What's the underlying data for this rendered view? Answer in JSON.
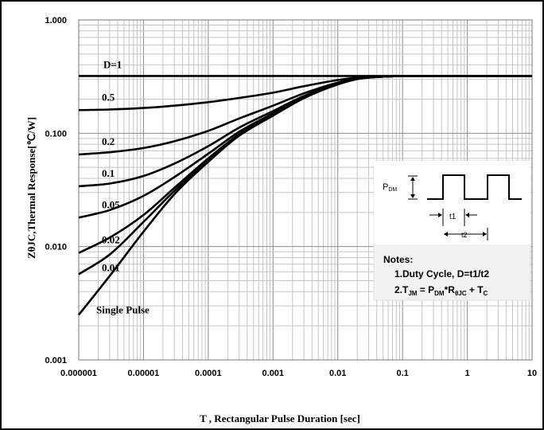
{
  "chart_data": {
    "type": "line",
    "title": "",
    "xlabel": "T , Rectangular Pulse Duration [sec]",
    "ylabel": "ZθJC,Thermal Response[℃/W]",
    "xscale": "log",
    "yscale": "log",
    "xlim": [
      1e-06,
      10
    ],
    "ylim": [
      0.001,
      1
    ],
    "grid": true,
    "x_ticks": [
      "0.000001",
      "0.00001",
      "0.0001",
      "0.001",
      "0.01",
      "0.1",
      "1",
      "10"
    ],
    "y_ticks": [
      "0.001",
      "0.010",
      "0.100",
      "1.000"
    ],
    "x": [
      1e-06,
      3e-06,
      1e-05,
      3e-05,
      0.0001,
      0.0003,
      0.001,
      0.003,
      0.01,
      0.02,
      0.05,
      0.1,
      1,
      10
    ],
    "series": [
      {
        "name": "D=1",
        "values": [
          0.32,
          0.32,
          0.32,
          0.32,
          0.32,
          0.32,
          0.32,
          0.32,
          0.32,
          0.32,
          0.32,
          0.32,
          0.32,
          0.32
        ]
      },
      {
        "name": "0.5",
        "values": [
          0.16,
          0.162,
          0.167,
          0.175,
          0.188,
          0.205,
          0.228,
          0.26,
          0.295,
          0.31,
          0.318,
          0.32,
          0.32,
          0.32
        ]
      },
      {
        "name": "0.2",
        "values": [
          0.065,
          0.068,
          0.074,
          0.085,
          0.105,
          0.135,
          0.175,
          0.225,
          0.28,
          0.305,
          0.316,
          0.32,
          0.32,
          0.32
        ]
      },
      {
        "name": "0.1",
        "values": [
          0.034,
          0.036,
          0.042,
          0.054,
          0.077,
          0.112,
          0.157,
          0.213,
          0.275,
          0.303,
          0.316,
          0.32,
          0.32,
          0.32
        ]
      },
      {
        "name": "0.05",
        "values": [
          0.018,
          0.021,
          0.028,
          0.041,
          0.066,
          0.103,
          0.15,
          0.209,
          0.272,
          0.302,
          0.316,
          0.32,
          0.32,
          0.32
        ]
      },
      {
        "name": "0.02",
        "values": [
          0.0088,
          0.012,
          0.019,
          0.033,
          0.06,
          0.098,
          0.145,
          0.206,
          0.27,
          0.301,
          0.316,
          0.32,
          0.32,
          0.32
        ]
      },
      {
        "name": "0.01",
        "values": [
          0.0057,
          0.0085,
          0.0165,
          0.031,
          0.058,
          0.096,
          0.144,
          0.205,
          0.27,
          0.301,
          0.316,
          0.32,
          0.32,
          0.32
        ]
      },
      {
        "name": "Single Pulse",
        "values": [
          0.0025,
          0.0055,
          0.0135,
          0.029,
          0.056,
          0.095,
          0.143,
          0.204,
          0.27,
          0.301,
          0.316,
          0.32,
          0.32,
          0.32
        ]
      }
    ]
  },
  "inset": {
    "pdm_label_main": "P",
    "pdm_label_sub": "DM",
    "t1_label": "t1",
    "t2_label": "t2",
    "notes_title": "Notes:",
    "note1": "1.Duty  Cycle, D=t1/t2",
    "note2_a": "2.T",
    "note2_a_sub": "JM",
    "note2_b": " = P",
    "note2_b_sub": "DM",
    "note2_c": "*R",
    "note2_c_sub": "θJC",
    "note2_d": " + T",
    "note2_d_sub": "C"
  }
}
